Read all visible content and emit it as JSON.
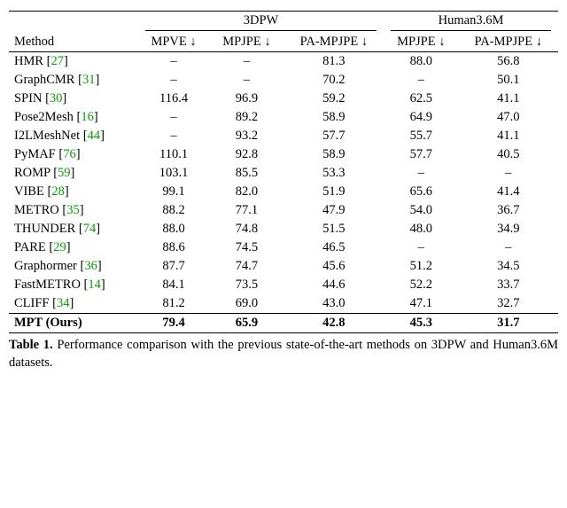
{
  "colors": {
    "cite": "#00a800",
    "text": "#000000",
    "bg": "#ffffff"
  },
  "fontsize_pt": 14.5,
  "header": {
    "method": "Method",
    "groups": [
      {
        "label": "3DPW",
        "cols": [
          "MPVE ↓",
          "MPJPE ↓",
          "PA-MPJPE ↓"
        ]
      },
      {
        "label": "Human3.6M",
        "cols": [
          "MPJPE ↓",
          "PA-MPJPE ↓"
        ]
      }
    ]
  },
  "rows": [
    {
      "name": "HMR",
      "cite": "27",
      "vals": [
        "–",
        "–",
        "81.3",
        "88.0",
        "56.8"
      ]
    },
    {
      "name": "GraphCMR",
      "cite": "31",
      "vals": [
        "–",
        "–",
        "70.2",
        "–",
        "50.1"
      ]
    },
    {
      "name": "SPIN",
      "cite": "30",
      "vals": [
        "116.4",
        "96.9",
        "59.2",
        "62.5",
        "41.1"
      ]
    },
    {
      "name": "Pose2Mesh",
      "cite": "16",
      "vals": [
        "–",
        "89.2",
        "58.9",
        "64.9",
        "47.0"
      ]
    },
    {
      "name": "I2LMeshNet",
      "cite": "44",
      "vals": [
        "–",
        "93.2",
        "57.7",
        "55.7",
        "41.1"
      ]
    },
    {
      "name": "PyMAF",
      "cite": "76",
      "vals": [
        "110.1",
        "92.8",
        "58.9",
        "57.7",
        "40.5"
      ]
    },
    {
      "name": "ROMP",
      "cite": "59",
      "vals": [
        "103.1",
        "85.5",
        "53.3",
        "–",
        "–"
      ]
    },
    {
      "name": "VIBE",
      "cite": "28",
      "vals": [
        "99.1",
        "82.0",
        "51.9",
        "65.6",
        "41.4"
      ]
    },
    {
      "name": "METRO",
      "cite": "35",
      "vals": [
        "88.2",
        "77.1",
        "47.9",
        "54.0",
        "36.7"
      ]
    },
    {
      "name": "THUNDER",
      "cite": "74",
      "vals": [
        "88.0",
        "74.8",
        "51.5",
        "48.0",
        "34.9"
      ]
    },
    {
      "name": "PARE",
      "cite": "29",
      "vals": [
        "88.6",
        "74.5",
        "46.5",
        "–",
        "–"
      ]
    },
    {
      "name": "Graphormer",
      "cite": "36",
      "vals": [
        "87.7",
        "74.7",
        "45.6",
        "51.2",
        "34.5"
      ]
    },
    {
      "name": "FastMETRO",
      "cite": "14",
      "vals": [
        "84.1",
        "73.5",
        "44.6",
        "52.2",
        "33.7"
      ]
    },
    {
      "name": "CLIFF",
      "cite": "34",
      "vals": [
        "81.2",
        "69.0",
        "43.0",
        "47.1",
        "32.7"
      ]
    }
  ],
  "ours": {
    "name": "MPT (Ours)",
    "vals": [
      "79.4",
      "65.9",
      "42.8",
      "45.3",
      "31.7"
    ]
  },
  "caption": {
    "label": "Table 1.",
    "text": "Performance comparison with the previous state-of-the-art methods on 3DPW and Human3.6M datasets."
  }
}
